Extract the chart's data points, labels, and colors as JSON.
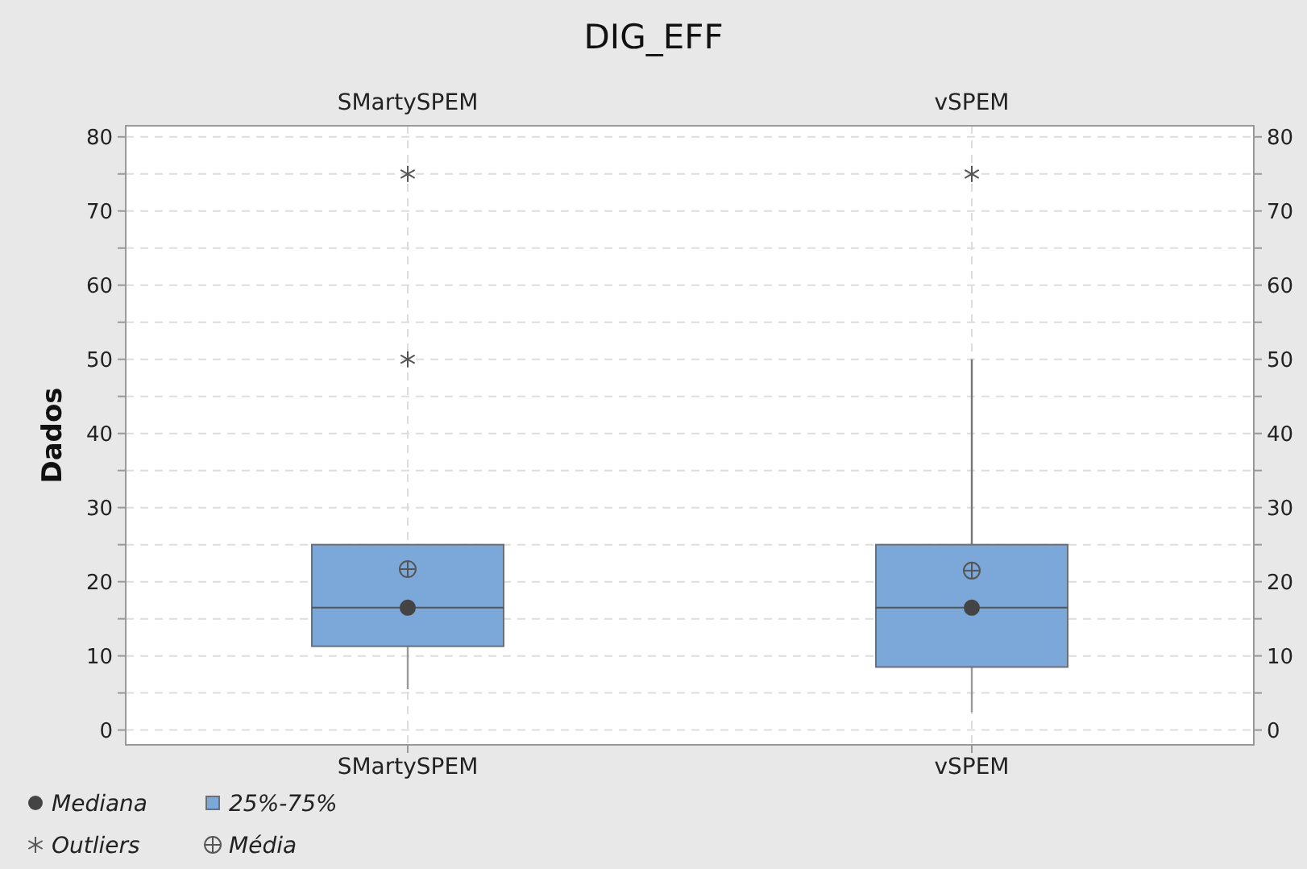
{
  "chart_data": {
    "type": "box",
    "title": "DIG_EFF",
    "ylabel": "Dados",
    "categories": [
      "SMartySPEM",
      "vSPEM"
    ],
    "boxes": [
      {
        "low": 5.5,
        "q1": 11.3,
        "median": 16.5,
        "q3": 25,
        "high": 25,
        "mean": 21.7,
        "outliers": [
          50,
          75
        ]
      },
      {
        "low": 2.4,
        "q1": 8.5,
        "median": 16.5,
        "q3": 25,
        "high": 50,
        "mean": 21.5,
        "outliers": [
          75
        ]
      }
    ],
    "color": "#7ba7d9",
    "series": [
      {
        "type": "scatter",
        "x": [
          "SMartySPEM",
          "vSPEM"
        ],
        "values": [
          16.5,
          16.5
        ],
        "color": "#444444"
      }
    ],
    "ylim": [
      -2,
      81.5
    ],
    "yticks": [
      0,
      {
        "value": 5,
        "label": null
      },
      10,
      {
        "value": 15,
        "label": null
      },
      20,
      {
        "value": 25,
        "label": null
      },
      30,
      {
        "value": 35,
        "label": null
      },
      40,
      {
        "value": 45,
        "label": null
      },
      50,
      {
        "value": 55,
        "label": null
      },
      60,
      {
        "value": 65,
        "label": null
      },
      70,
      {
        "value": 75,
        "label": null
      },
      80
    ],
    "y2lim": [
      -2,
      81.5
    ],
    "y2ticks": [
      0,
      {
        "value": 5,
        "label": null
      },
      10,
      {
        "value": 15,
        "label": null
      },
      20,
      {
        "value": 25,
        "label": null
      },
      30,
      {
        "value": 35,
        "label": null
      },
      40,
      {
        "value": 45,
        "label": null
      },
      50,
      {
        "value": 55,
        "label": null
      },
      60,
      {
        "value": 65,
        "label": null
      },
      70,
      {
        "value": 75,
        "label": null
      },
      80
    ],
    "grid": true,
    "annotations": [
      "Mediana",
      "25%-75%",
      "Outliers",
      "Média"
    ]
  }
}
